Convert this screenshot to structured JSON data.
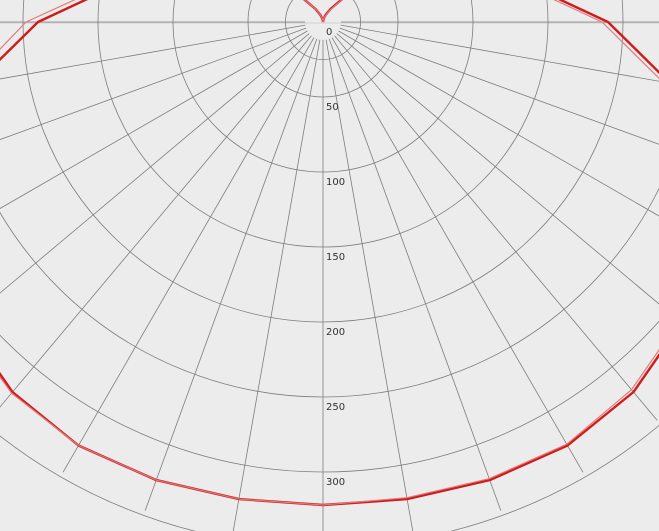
{
  "chart_data": {
    "type": "line",
    "subtype": "polar-luminous-intensity",
    "radial_ticks": [
      "0",
      "50",
      "100",
      "150",
      "200",
      "250",
      "300"
    ],
    "radial_tick_values": [
      0,
      50,
      100,
      150,
      200,
      250,
      300
    ],
    "radial_max": 350,
    "angular_step_deg": 10,
    "grid": true,
    "series": [
      {
        "color": "#d11a1a",
        "angles_deg": [
          -180,
          -170,
          -160,
          -150,
          -140,
          -130,
          -120,
          -110,
          -100,
          -90,
          -80,
          -70,
          -60,
          -50,
          -40,
          -30,
          -20,
          -10,
          0,
          10,
          20,
          30,
          40,
          50,
          60,
          70,
          80,
          90,
          100,
          110,
          120,
          130,
          140,
          150,
          160,
          170,
          180
        ],
        "values": [
          0,
          2,
          5,
          10,
          20,
          35,
          60,
          95,
          140,
          190,
          235,
          270,
          295,
          312,
          322,
          326,
          325,
          323,
          322,
          323,
          325,
          326,
          322,
          312,
          295,
          270,
          235,
          190,
          140,
          95,
          60,
          35,
          20,
          10,
          5,
          2,
          0
        ]
      },
      {
        "color": "#e07a7a",
        "angles_deg": [
          -180,
          -170,
          -160,
          -150,
          -140,
          -130,
          -120,
          -110,
          -100,
          -90,
          -80,
          -70,
          -60,
          -50,
          -40,
          -30,
          -20,
          -10,
          0,
          10,
          20,
          30,
          40,
          50,
          60,
          70,
          80,
          90,
          100,
          110,
          120,
          130,
          140,
          150,
          160,
          170,
          180
        ],
        "values": [
          0,
          2,
          5,
          10,
          20,
          36,
          62,
          98,
          145,
          198,
          242,
          276,
          299,
          314,
          323,
          326,
          325,
          323,
          322,
          322,
          324,
          325,
          320,
          310,
          292,
          266,
          230,
          186,
          137,
          93,
          59,
          34,
          19,
          9,
          4,
          2,
          0
        ]
      }
    ]
  },
  "colors": {
    "background": "#ececec",
    "grid": "#7d7d7d",
    "border": "#cfcfcf"
  }
}
